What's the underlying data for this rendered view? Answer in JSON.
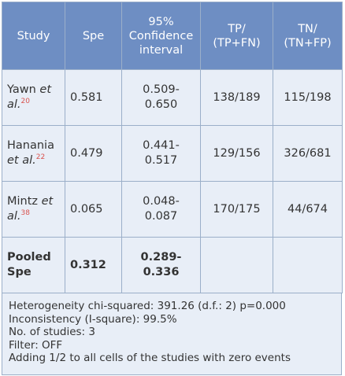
{
  "headers": {
    "study": "Study",
    "spe": "Spe",
    "ci_line1": "95%",
    "ci_line2": "Confidence",
    "ci_line3": "interval",
    "tp_line1": "TP/",
    "tp_line2": "(TP+FN)",
    "tn_line1": "TN/",
    "tn_line2": "(TN+FP)"
  },
  "rows": [
    {
      "author": "Yawn",
      "etal": "et al.",
      "ref": "20",
      "spe": "0.581",
      "ci_low": "0.509-",
      "ci_high": "0.650",
      "tp": "138/189",
      "tn": "115/198"
    },
    {
      "author": "Hanania",
      "etal": "et al.",
      "ref": "22",
      "spe": "0.479",
      "ci_low": "0.441-",
      "ci_high": "0.517",
      "tp": "129/156",
      "tn": "326/681"
    },
    {
      "author": "Mintz",
      "etal": "et al.",
      "ref": "38",
      "spe": "0.065",
      "ci_low": "0.048-",
      "ci_high": "0.087",
      "tp": "170/175",
      "tn": "44/674"
    }
  ],
  "pooled": {
    "label_line1": "Pooled",
    "label_line2": "Spe",
    "spe": "0.312",
    "ci_low": "0.289-",
    "ci_high": "0.336"
  },
  "footer": {
    "line1": "Heterogeneity chi-squared: 391.26 (d.f.: 2) p=0.000",
    "line2": "Inconsistency (I-square): 99.5%",
    "line3": "No. of studies: 3",
    "line4": "Filter: OFF",
    "line5": "Adding 1/2 to all cells of the studies with zero events"
  },
  "colors": {
    "header_bg": "#6e8ec3",
    "cell_bg": "#e8eef7",
    "border": "#9bafc9",
    "reference": "#d9534f"
  }
}
